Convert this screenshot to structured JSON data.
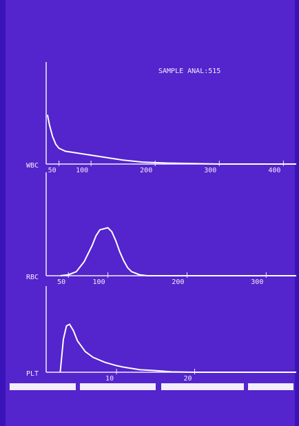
{
  "screen_title": "SAMPLE ANAL:515",
  "chart_data": [
    {
      "type": "line",
      "label": "WBC",
      "color": "#ffffff",
      "x": [
        32,
        35,
        40,
        45,
        50,
        60,
        80,
        100,
        120,
        150,
        180,
        220,
        260,
        300,
        420
      ],
      "values": [
        50,
        40,
        28,
        20,
        16,
        13,
        11,
        9,
        7,
        4,
        2,
        1,
        0.5,
        0,
        0
      ],
      "xlim": [
        30,
        420
      ],
      "ylim": [
        0,
        100
      ],
      "xticks": [
        50,
        100,
        200,
        300,
        400
      ]
    },
    {
      "type": "line",
      "label": "RBC",
      "color": "#ffffff",
      "x": [
        40,
        50,
        60,
        70,
        80,
        85,
        90,
        95,
        100,
        105,
        110,
        115,
        120,
        125,
        130,
        140,
        150,
        338
      ],
      "values": [
        0,
        1,
        4,
        14,
        30,
        40,
        46,
        47,
        48,
        44,
        35,
        24,
        15,
        8,
        4,
        1,
        0,
        0
      ],
      "xlim": [
        22,
        338
      ],
      "ylim": [
        0,
        100
      ],
      "xticks": [
        50,
        100,
        200,
        300
      ]
    },
    {
      "type": "line",
      "label": "PLT",
      "color": "#ffffff",
      "x": [
        2.8,
        3.2,
        3.6,
        4,
        4.5,
        5,
        6,
        7,
        8.5,
        10,
        11,
        13,
        15,
        17,
        20,
        33
      ],
      "values": [
        0,
        40,
        56,
        58,
        50,
        38,
        25,
        18,
        12,
        8,
        6,
        3,
        2,
        0.5,
        0,
        0
      ],
      "xlim": [
        1,
        33
      ],
      "ylim": [
        0,
        100
      ],
      "xticks": [
        10,
        20
      ]
    }
  ]
}
